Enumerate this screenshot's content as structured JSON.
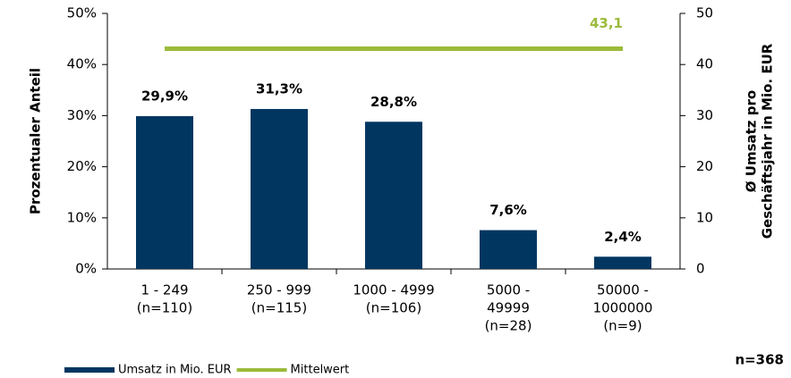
{
  "chart_data": {
    "type": "bar",
    "y_label": "Prozentualer Anteil",
    "y2_label": [
      "Ø Umsatz pro",
      "Geschäftsjahr in Mio. EUR"
    ],
    "categories": [
      [
        "1 - 249",
        "(n=110)"
      ],
      [
        "250 - 999",
        "(n=115)"
      ],
      [
        "1000 - 4999",
        "(n=106)"
      ],
      [
        "5000 -",
        "49999",
        "(n=28)"
      ],
      [
        "50000 -",
        "1000000",
        "(n=9)"
      ]
    ],
    "series": [
      {
        "name": "Umsatz in Mio. EUR",
        "color": "#003660",
        "values": [
          29.9,
          31.3,
          28.8,
          7.6,
          2.4
        ],
        "value_labels": [
          "29,9%",
          "31,3%",
          "28,8%",
          "7,6%",
          "2,4%"
        ]
      },
      {
        "name": "Mittelwert",
        "type": "line",
        "axis": "y2",
        "color": "#9bbb3b",
        "values": [
          43.1,
          43.1,
          43.1,
          43.1,
          43.1
        ],
        "value_labels": [
          null,
          null,
          null,
          null,
          "43,1"
        ]
      }
    ],
    "ylim": [
      0,
      50
    ],
    "yticks": [
      {
        "value": 0,
        "label": "0%"
      },
      {
        "value": 10,
        "label": "10%"
      },
      {
        "value": 20,
        "label": "20%"
      },
      {
        "value": 30,
        "label": "30%"
      },
      {
        "value": 40,
        "label": "40%"
      },
      {
        "value": 50,
        "label": "50%"
      }
    ],
    "y2lim": [
      0,
      50
    ],
    "y2ticks": [
      0,
      10,
      20,
      30,
      40,
      50
    ],
    "annotation": "n=368",
    "legend": "bottom"
  }
}
